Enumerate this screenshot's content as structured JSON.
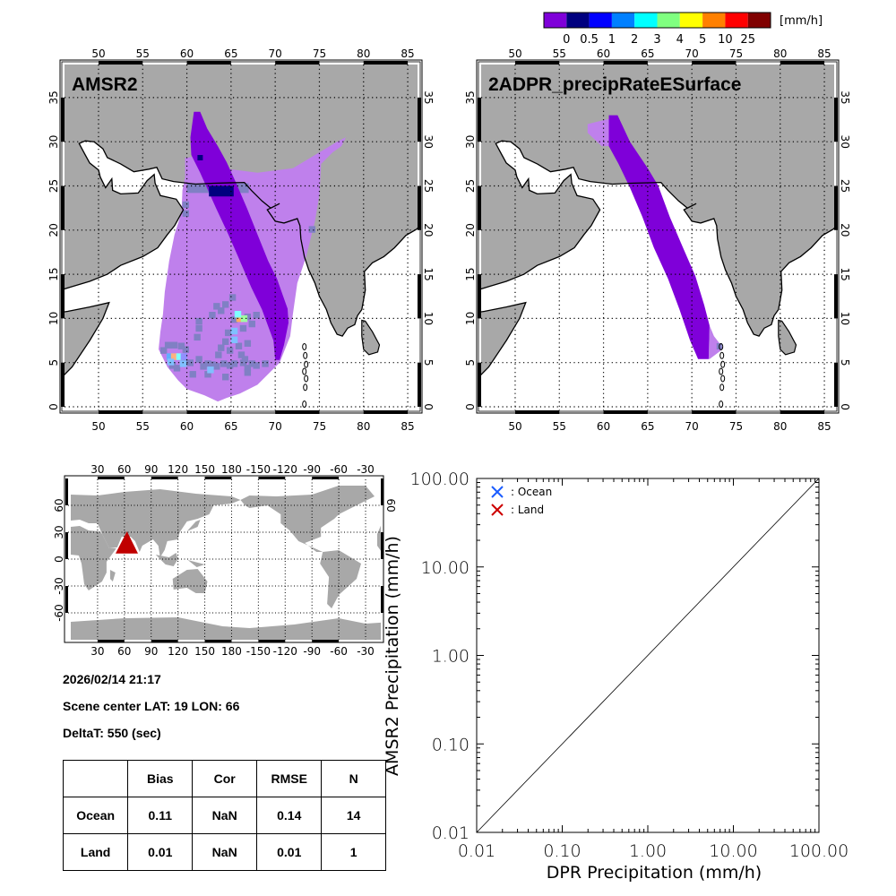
{
  "colorbar": {
    "colors": [
      "#7f00d9",
      "#00007f",
      "#0000ff",
      "#0080ff",
      "#00ffff",
      "#80ff80",
      "#ffff00",
      "#ff8000",
      "#ff0000",
      "#800000"
    ],
    "labels": [
      "0",
      "0.5",
      "1",
      "2",
      "3",
      "4",
      "5",
      "10",
      "25"
    ],
    "unit": "[mm/h]"
  },
  "maps": {
    "left_title": "AMSR2",
    "right_title": "2ADPR_precipRateESurface",
    "lon_labels": [
      "50",
      "55",
      "60",
      "65",
      "70",
      "75",
      "80",
      "85"
    ],
    "lat_labels": [
      "0",
      "5",
      "10",
      "15",
      "20",
      "25",
      "30",
      "35"
    ],
    "land_color": "#a8a8a8",
    "swath_light_color": "#bf80ec",
    "swath_slate_color": "#8080c4"
  },
  "world_map": {
    "lon_labels": [
      "30",
      "60",
      "90",
      "120",
      "150",
      "180",
      "-150",
      "-120",
      "-90",
      "-60",
      "-30"
    ],
    "lat_labels": [
      "60",
      "30",
      "0",
      "-30",
      "-60"
    ],
    "right_lat_label": "60",
    "marker_color": "#c00000"
  },
  "info": {
    "datetime": "2026/02/14 21:17",
    "scene_center": "Scene center LAT: 19   LON:  66",
    "delta_t": "DeltaT:  550 (sec)"
  },
  "stats_table": {
    "headers": [
      "",
      "Bias",
      "Cor",
      "RMSE",
      "N"
    ],
    "rows": [
      [
        "Ocean",
        "0.11",
        "NaN",
        "0.14",
        "14"
      ],
      [
        "Land",
        "0.01",
        "NaN",
        "0.01",
        "1"
      ]
    ]
  },
  "chart_data": {
    "type": "scatter",
    "xlabel": "DPR Precipitation (mm/h)",
    "ylabel": "AMSR2 Precipitation (mm/h)",
    "xscale": "log",
    "yscale": "log",
    "xlim": [
      0.01,
      100
    ],
    "ylim": [
      0.01,
      100
    ],
    "x_tick_labels": [
      "0.01",
      "0.10",
      "1.00",
      "10.00",
      "100.00"
    ],
    "y_tick_labels": [
      "0.01",
      "0.10",
      "1.00",
      "10.00",
      "100.00"
    ],
    "reference_line": "1:1",
    "legend": [
      {
        "label": ": Ocean",
        "marker": "x",
        "color": "#1a5cff"
      },
      {
        "label": ": Land",
        "marker": "x",
        "color": "#cc0000"
      }
    ],
    "legend_position": "top-left",
    "series": [
      {
        "name": "Ocean",
        "points": []
      },
      {
        "name": "Land",
        "points": []
      }
    ]
  }
}
